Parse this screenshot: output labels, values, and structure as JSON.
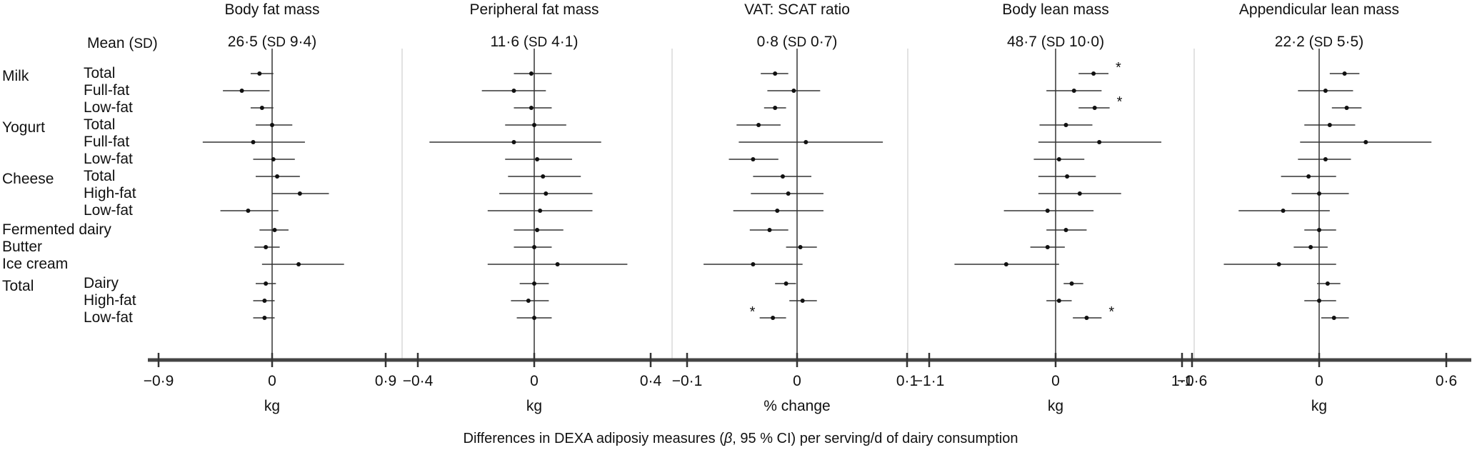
{
  "chart_data": {
    "type": "forest",
    "footer": {
      "pre": "Differences in DEXA adiposiy measures (",
      "beta": "β",
      "post": ", 95 % CI) per serving/d of dairy consumption"
    },
    "mean_label": {
      "main": "Mean",
      "open": "(",
      "sd": "SD",
      "close": ")"
    },
    "groups": [
      {
        "name": "Milk",
        "rows": [
          0,
          1,
          2
        ]
      },
      {
        "name": "Yogurt",
        "rows": [
          3,
          4,
          5
        ]
      },
      {
        "name": "Cheese",
        "rows": [
          6,
          7,
          8
        ]
      },
      {
        "name": "Fermented dairy",
        "rows": [
          9
        ]
      },
      {
        "name": "Butter",
        "rows": [
          10
        ]
      },
      {
        "name": "Ice cream",
        "rows": [
          11
        ]
      },
      {
        "name": "Total",
        "rows": [
          12,
          13,
          14
        ]
      }
    ],
    "rows": [
      "Total",
      "Full-fat",
      "Low-fat",
      "Total",
      "Full-fat",
      "Low-fat",
      "Total",
      "High-fat",
      "Low-fat",
      "Fermented dairy",
      "Butter",
      "Ice cream",
      "Dairy",
      "High-fat",
      "Low-fat"
    ],
    "panels": [
      {
        "title": "Body fat mass",
        "mean": "26·5",
        "sd_label": "SD",
        "sd": "9·4",
        "xlabel": "kg",
        "xlim": [
          -0.9,
          0.9
        ],
        "ticks": [
          {
            "v": -0.9,
            "t": "−0·9"
          },
          {
            "v": 0,
            "t": "0"
          },
          {
            "v": 0.9,
            "t": "0·9"
          }
        ],
        "estimates": [
          -0.1,
          -0.24,
          -0.08,
          0.0,
          -0.15,
          0.01,
          0.04,
          0.22,
          -0.19,
          0.02,
          -0.05,
          0.21,
          -0.05,
          -0.06,
          -0.06
        ],
        "ci_low": [
          -0.17,
          -0.39,
          -0.17,
          -0.13,
          -0.55,
          -0.15,
          -0.13,
          0.0,
          -0.41,
          -0.1,
          -0.14,
          -0.08,
          -0.13,
          -0.15,
          -0.15
        ],
        "ci_high": [
          0.01,
          -0.02,
          0.01,
          0.16,
          0.26,
          0.18,
          0.22,
          0.45,
          0.05,
          0.13,
          0.06,
          0.57,
          0.03,
          0.02,
          0.02
        ],
        "significant": [
          false,
          false,
          false,
          false,
          false,
          false,
          false,
          false,
          false,
          false,
          false,
          false,
          false,
          false,
          false
        ]
      },
      {
        "title": "Peripheral fat mass",
        "mean": "11·6",
        "sd_label": "SD",
        "sd": "4·1",
        "xlabel": "kg",
        "xlim": [
          -0.4,
          0.4
        ],
        "ticks": [
          {
            "v": -0.4,
            "t": "−0·4"
          },
          {
            "v": 0,
            "t": "0"
          },
          {
            "v": 0.4,
            "t": "0·4"
          }
        ],
        "estimates": [
          -0.01,
          -0.07,
          -0.01,
          0.0,
          -0.07,
          0.01,
          0.03,
          0.04,
          0.02,
          0.01,
          0.0,
          0.08,
          0.0,
          -0.02,
          0.0
        ],
        "ci_low": [
          -0.07,
          -0.18,
          -0.07,
          -0.1,
          -0.36,
          -0.1,
          -0.09,
          -0.12,
          -0.16,
          -0.07,
          -0.07,
          -0.16,
          -0.05,
          -0.08,
          -0.06
        ],
        "ci_high": [
          0.06,
          0.04,
          0.06,
          0.11,
          0.23,
          0.13,
          0.16,
          0.2,
          0.2,
          0.1,
          0.06,
          0.32,
          0.05,
          0.05,
          0.06
        ],
        "significant": [
          false,
          false,
          false,
          false,
          false,
          false,
          false,
          false,
          false,
          false,
          false,
          false,
          false,
          false,
          false
        ]
      },
      {
        "title": "VAT: SCAT ratio",
        "mean": "0·8",
        "sd_label": "SD",
        "sd": "0·7",
        "xlabel": "% change",
        "xlim": [
          -0.1,
          0.1
        ],
        "ticks": [
          {
            "v": -0.1,
            "t": "−0·1"
          },
          {
            "v": 0,
            "t": "0"
          },
          {
            "v": 0.1,
            "t": "0·1"
          }
        ],
        "estimates": [
          -0.02,
          -0.003,
          -0.02,
          -0.035,
          0.008,
          -0.04,
          -0.013,
          -0.008,
          -0.018,
          -0.025,
          0.003,
          -0.04,
          -0.01,
          0.005,
          -0.022
        ],
        "ci_low": [
          -0.033,
          -0.027,
          -0.03,
          -0.055,
          -0.053,
          -0.062,
          -0.04,
          -0.042,
          -0.058,
          -0.043,
          -0.01,
          -0.085,
          -0.02,
          -0.007,
          -0.034
        ],
        "ci_high": [
          -0.008,
          0.021,
          -0.01,
          -0.015,
          0.078,
          -0.017,
          0.013,
          0.024,
          0.024,
          -0.008,
          0.018,
          0.005,
          -0.001,
          0.018,
          -0.01
        ],
        "significant": [
          false,
          false,
          false,
          false,
          false,
          false,
          false,
          false,
          false,
          false,
          false,
          false,
          false,
          false,
          true
        ]
      },
      {
        "title": "Body lean mass",
        "mean": "48·7",
        "sd_label": "SD",
        "sd": "10·0",
        "xlabel": "kg",
        "xlim": [
          -1.1,
          1.1
        ],
        "ticks": [
          {
            "v": -1.1,
            "t": "−1·1"
          },
          {
            "v": 0,
            "t": "0"
          },
          {
            "v": 1.1,
            "t": "1·1"
          }
        ],
        "estimates": [
          0.33,
          0.16,
          0.34,
          0.09,
          0.38,
          0.03,
          0.1,
          0.21,
          -0.07,
          0.09,
          -0.07,
          -0.43,
          0.14,
          0.03,
          0.27
        ],
        "ci_low": [
          0.2,
          -0.08,
          0.2,
          -0.14,
          -0.15,
          -0.19,
          -0.15,
          -0.15,
          -0.45,
          -0.08,
          -0.22,
          -0.88,
          0.07,
          -0.08,
          0.15
        ],
        "ci_high": [
          0.46,
          0.4,
          0.47,
          0.32,
          0.92,
          0.25,
          0.35,
          0.57,
          0.33,
          0.27,
          0.08,
          0.03,
          0.24,
          0.14,
          0.4
        ],
        "significant": [
          true,
          false,
          true,
          false,
          false,
          false,
          false,
          false,
          false,
          false,
          false,
          false,
          false,
          false,
          true
        ]
      },
      {
        "title": "Appendicular lean mass",
        "mean": "22·2",
        "sd_label": "SD",
        "sd": "5·5",
        "xlabel": "kg",
        "xlim": [
          -0.6,
          0.6
        ],
        "ticks": [
          {
            "v": -0.6,
            "t": "−0·6"
          },
          {
            "v": 0,
            "t": "0"
          },
          {
            "v": 0.6,
            "t": "0·6"
          }
        ],
        "estimates": [
          0.12,
          0.03,
          0.13,
          0.05,
          0.22,
          0.03,
          -0.05,
          0.0,
          -0.17,
          0.0,
          -0.04,
          -0.19,
          0.04,
          0.0,
          0.07
        ],
        "ci_low": [
          0.05,
          -0.1,
          0.06,
          -0.07,
          -0.09,
          -0.1,
          -0.18,
          -0.13,
          -0.38,
          -0.07,
          -0.12,
          -0.45,
          -0.01,
          -0.07,
          0.01
        ],
        "ci_high": [
          0.19,
          0.16,
          0.2,
          0.17,
          0.53,
          0.15,
          0.08,
          0.14,
          0.05,
          0.08,
          0.04,
          0.08,
          0.1,
          0.08,
          0.14
        ],
        "significant": [
          false,
          false,
          false,
          false,
          false,
          false,
          false,
          false,
          false,
          false,
          false,
          false,
          false,
          false,
          false
        ]
      }
    ]
  }
}
